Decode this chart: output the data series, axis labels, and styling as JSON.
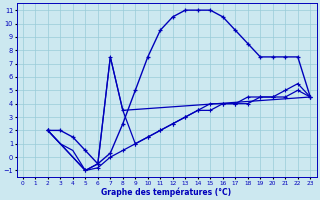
{
  "xlabel": "Graphe des températures (°C)",
  "bg_color": "#cce8f0",
  "grid_color": "#99ccd9",
  "line_color": "#0000bb",
  "xlim": [
    -0.5,
    23.5
  ],
  "ylim": [
    -1.5,
    11.5
  ],
  "xticks": [
    0,
    1,
    2,
    3,
    4,
    5,
    6,
    7,
    8,
    9,
    10,
    11,
    12,
    13,
    14,
    15,
    16,
    17,
    18,
    19,
    20,
    21,
    22,
    23
  ],
  "yticks": [
    -1,
    0,
    1,
    2,
    3,
    4,
    5,
    6,
    7,
    8,
    9,
    10,
    11
  ],
  "curve1_x": [
    2,
    3,
    4,
    5,
    6,
    7,
    8,
    9,
    10,
    11,
    12,
    13,
    14,
    15,
    16,
    17,
    18,
    19,
    20,
    21,
    22,
    23
  ],
  "curve1_y": [
    2.0,
    2.0,
    1.5,
    0.5,
    -0.5,
    0.3,
    2.5,
    5.0,
    7.5,
    9.5,
    10.5,
    11.0,
    11.0,
    11.0,
    10.5,
    9.5,
    8.5,
    7.5,
    7.5,
    7.5,
    7.5,
    4.5
  ],
  "curve2_x": [
    2,
    5,
    6,
    7,
    8,
    9,
    10,
    11,
    12,
    13,
    14,
    15,
    16,
    17,
    18,
    19,
    20,
    21,
    22,
    23
  ],
  "curve2_y": [
    2.0,
    -1.0,
    -0.8,
    0.0,
    0.5,
    1.0,
    1.5,
    2.0,
    2.5,
    3.0,
    3.5,
    4.0,
    4.0,
    4.0,
    4.5,
    4.5,
    4.5,
    5.0,
    5.5,
    4.5
  ],
  "curve3_x": [
    2,
    5,
    6,
    7,
    8,
    9,
    10,
    11,
    12,
    13,
    14,
    15,
    16,
    17,
    18,
    19,
    20,
    21,
    22,
    23
  ],
  "curve3_y": [
    2.0,
    -1.0,
    -0.5,
    7.5,
    3.5,
    1.0,
    1.5,
    2.0,
    2.5,
    3.0,
    3.5,
    3.5,
    4.0,
    4.0,
    4.0,
    4.5,
    4.5,
    4.5,
    5.0,
    4.5
  ],
  "curve4_x": [
    2,
    3,
    4,
    5,
    6,
    7,
    8,
    23
  ],
  "curve4_y": [
    2.0,
    1.0,
    0.5,
    -1.0,
    -0.5,
    7.5,
    3.5,
    4.5
  ]
}
